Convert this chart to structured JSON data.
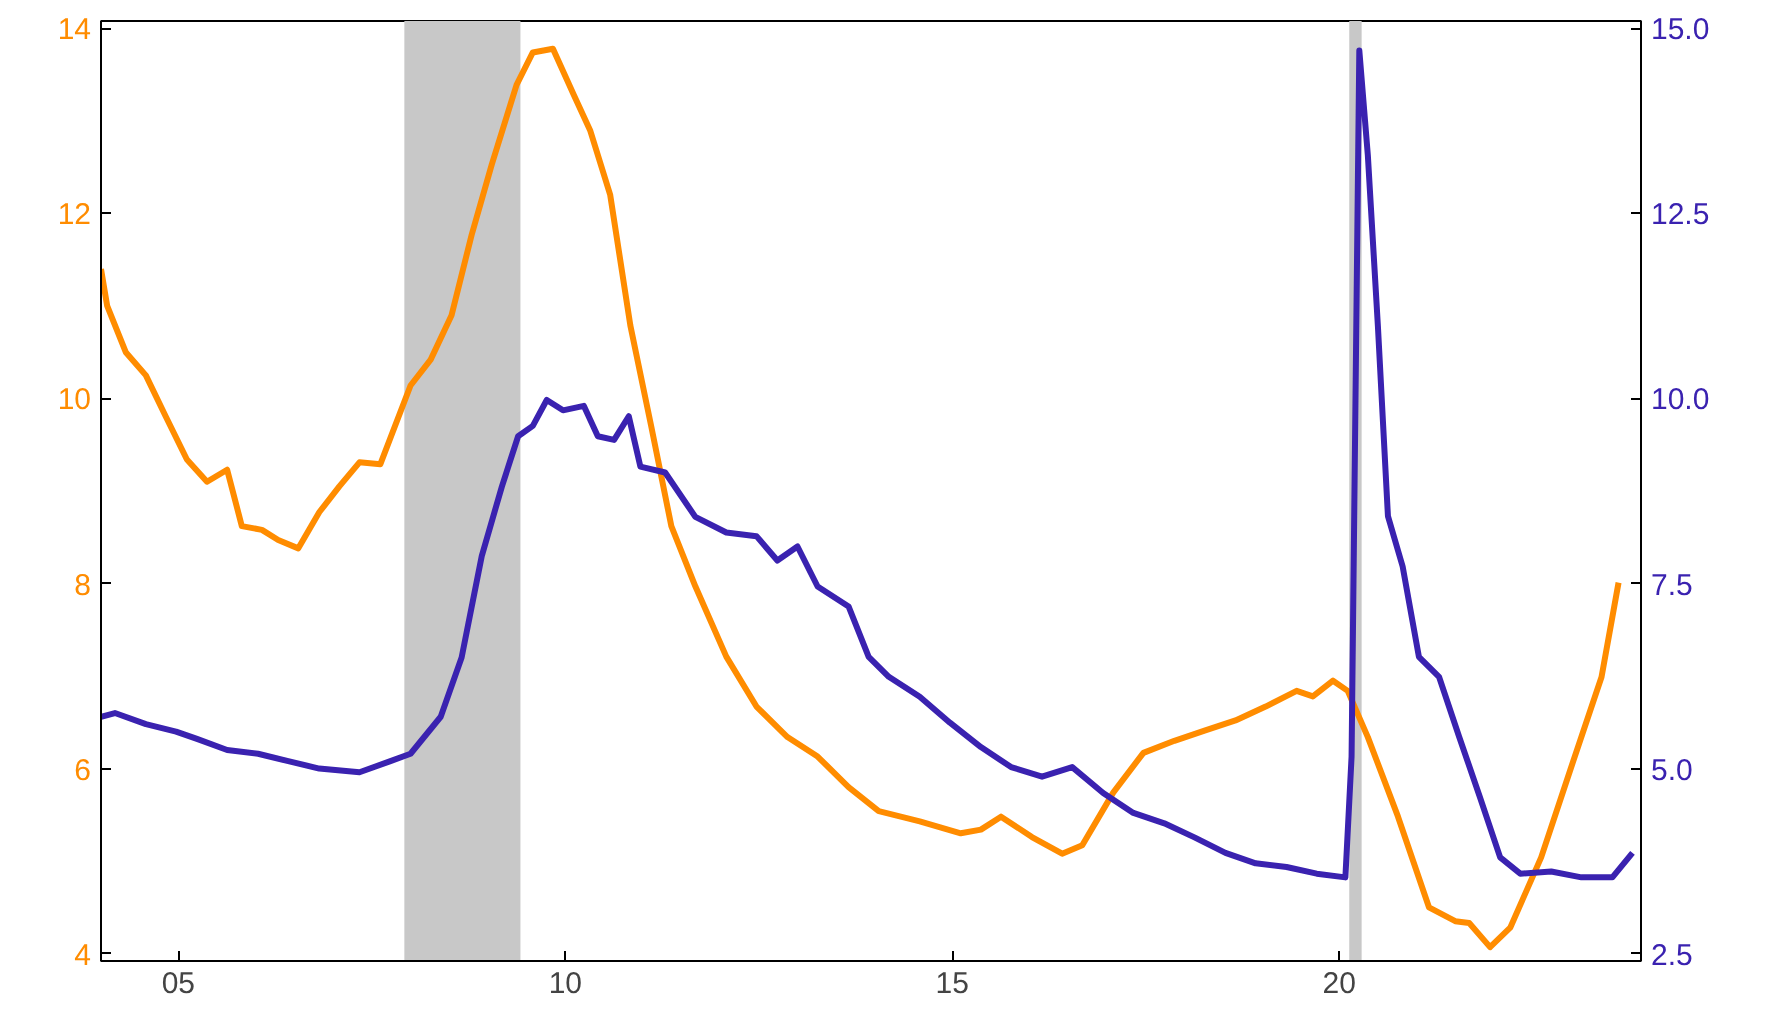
{
  "chart_data": {
    "type": "line",
    "xlim": [
      2004.0,
      2023.9
    ],
    "xticks": [
      {
        "value": 2005,
        "label": "05"
      },
      {
        "value": 2010,
        "label": "10"
      },
      {
        "value": 2015,
        "label": "15"
      },
      {
        "value": 2020,
        "label": "20"
      }
    ],
    "ylim": [
      3.92,
      14.08
    ],
    "yticks": [
      4,
      6,
      8,
      10,
      12,
      14
    ],
    "y2lim": [
      2.4,
      15.1
    ],
    "y2ticks": [
      {
        "value": 2.5,
        "label": "2.5"
      },
      {
        "value": 5,
        "label": "5.0"
      },
      {
        "value": 7.5,
        "label": "7.5"
      },
      {
        "value": 10,
        "label": "10.0"
      },
      {
        "value": 12.5,
        "label": "12.5"
      },
      {
        "value": 15,
        "label": "15.0"
      }
    ],
    "grid": false,
    "line_style": "solid",
    "marker": "none",
    "bands": [
      {
        "axis": "x",
        "from": 2007.92,
        "to": 2009.42,
        "color": "#c8c8c8"
      },
      {
        "axis": "x",
        "from": 2020.13,
        "to": 2020.29,
        "color": "#c8c8c8"
      }
    ],
    "series": [
      {
        "color": "#ff8c00",
        "axis": "y",
        "x": [
          2004.0,
          2004.08,
          2004.32,
          2004.58,
          2004.84,
          2005.11,
          2005.37,
          2005.63,
          2005.82,
          2006.08,
          2006.29,
          2006.55,
          2006.82,
          2007.08,
          2007.34,
          2007.61,
          2008.0,
          2008.26,
          2008.53,
          2008.79,
          2009.05,
          2009.37,
          2009.58,
          2009.84,
          2010.11,
          2010.32,
          2010.58,
          2010.84,
          2011.11,
          2011.37,
          2011.68,
          2012.08,
          2012.47,
          2012.87,
          2013.26,
          2013.66,
          2014.05,
          2014.58,
          2015.11,
          2015.37,
          2015.63,
          2016.03,
          2016.42,
          2016.68,
          2017.08,
          2017.47,
          2017.87,
          2018.26,
          2018.66,
          2019.05,
          2019.45,
          2019.66,
          2019.92,
          2020.11,
          2020.37,
          2020.76,
          2021.16,
          2021.5,
          2021.68,
          2021.95,
          2022.21,
          2022.61,
          2023.0,
          2023.39,
          2023.61
        ],
        "values": [
          11.4,
          11.0,
          10.5,
          10.25,
          9.8,
          9.34,
          9.1,
          9.23,
          8.62,
          8.58,
          8.47,
          8.38,
          8.77,
          9.05,
          9.31,
          9.29,
          10.14,
          10.42,
          10.9,
          11.77,
          12.53,
          13.39,
          13.74,
          13.78,
          13.28,
          12.9,
          12.2,
          10.79,
          9.7,
          8.62,
          7.97,
          7.21,
          6.67,
          6.34,
          6.13,
          5.8,
          5.54,
          5.43,
          5.3,
          5.34,
          5.48,
          5.26,
          5.08,
          5.17,
          5.74,
          6.17,
          6.3,
          6.41,
          6.52,
          6.67,
          6.84,
          6.78,
          6.95,
          6.84,
          6.34,
          5.48,
          4.5,
          4.35,
          4.33,
          4.07,
          4.28,
          5.04,
          6.02,
          6.99,
          8.01
        ]
      },
      {
        "color": "#3a22b0",
        "axis": "y2",
        "x": [
          2004.0,
          2004.18,
          2004.58,
          2004.97,
          2005.24,
          2005.63,
          2006.03,
          2006.42,
          2006.82,
          2007.34,
          2007.74,
          2008.0,
          2008.39,
          2008.66,
          2008.92,
          2009.18,
          2009.39,
          2009.58,
          2009.76,
          2009.97,
          2010.24,
          2010.42,
          2010.63,
          2010.82,
          2010.97,
          2011.29,
          2011.68,
          2012.08,
          2012.47,
          2012.74,
          2013.0,
          2013.26,
          2013.66,
          2013.92,
          2014.18,
          2014.58,
          2014.97,
          2015.37,
          2015.76,
          2016.16,
          2016.55,
          2016.95,
          2017.34,
          2017.74,
          2018.13,
          2018.53,
          2018.92,
          2019.32,
          2019.71,
          2020.08,
          2020.16,
          2020.26,
          2020.37,
          2020.5,
          2020.63,
          2020.82,
          2021.03,
          2021.29,
          2021.55,
          2021.82,
          2022.08,
          2022.34,
          2022.74,
          2023.13,
          2023.53,
          2023.79
        ],
        "values": [
          5.7,
          5.75,
          5.6,
          5.5,
          5.4,
          5.25,
          5.2,
          5.1,
          5.0,
          4.95,
          5.1,
          5.2,
          5.7,
          6.5,
          7.87,
          8.81,
          9.49,
          9.63,
          9.98,
          9.84,
          9.9,
          9.49,
          9.44,
          9.76,
          9.08,
          9.0,
          8.4,
          8.19,
          8.14,
          7.81,
          8.0,
          7.46,
          7.19,
          6.51,
          6.24,
          5.97,
          5.62,
          5.29,
          5.02,
          4.89,
          5.02,
          4.67,
          4.4,
          4.26,
          4.07,
          3.86,
          3.72,
          3.67,
          3.58,
          3.53,
          5.16,
          14.7,
          13.29,
          10.98,
          8.41,
          7.73,
          6.51,
          6.24,
          5.43,
          4.61,
          3.8,
          3.58,
          3.61,
          3.53,
          3.53,
          3.86
        ]
      }
    ]
  }
}
